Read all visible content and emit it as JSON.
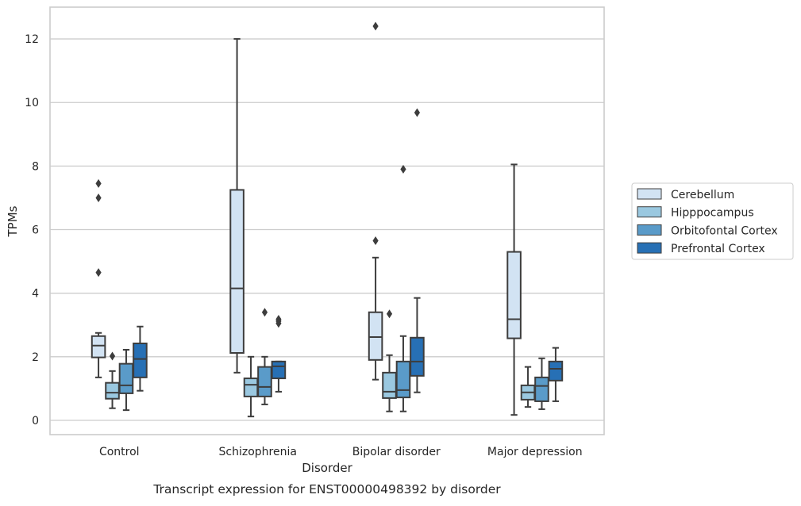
{
  "chart_data": {
    "type": "box",
    "title": "Transcript expression for ENST00000498392 by disorder",
    "xlabel": "Disorder",
    "ylabel": "TPMs",
    "ylim": [
      -0.45,
      13
    ],
    "yticks": [
      0,
      2,
      4,
      6,
      8,
      10,
      12
    ],
    "grid": "horizontal",
    "legend_position": "center-right",
    "categories": [
      "Control",
      "Schizophrenia",
      "Bipolar disorder",
      "Major depression"
    ],
    "series": [
      {
        "name": "Cerebellum",
        "color": "#d2e3f3",
        "boxes": [
          {
            "whislo": 1.35,
            "q1": 1.98,
            "med": 2.35,
            "q3": 2.65,
            "whishi": 2.75,
            "fliers": [
              4.65,
              7.0,
              7.45
            ]
          },
          {
            "whislo": 1.5,
            "q1": 2.12,
            "med": 4.15,
            "q3": 7.25,
            "whishi": 12.0,
            "fliers": []
          },
          {
            "whislo": 1.28,
            "q1": 1.9,
            "med": 2.62,
            "q3": 3.4,
            "whishi": 5.12,
            "fliers": [
              5.65,
              12.4
            ]
          },
          {
            "whislo": 0.17,
            "q1": 2.58,
            "med": 3.18,
            "q3": 5.3,
            "whishi": 8.05,
            "fliers": []
          }
        ]
      },
      {
        "name": "Hipppocampus",
        "color": "#9ac8e0",
        "boxes": [
          {
            "whislo": 0.38,
            "q1": 0.68,
            "med": 0.87,
            "q3": 1.18,
            "whishi": 1.55,
            "fliers": [
              2.02
            ]
          },
          {
            "whislo": 0.12,
            "q1": 0.75,
            "med": 1.12,
            "q3": 1.32,
            "whishi": 2.0,
            "fliers": []
          },
          {
            "whislo": 0.28,
            "q1": 0.7,
            "med": 0.9,
            "q3": 1.5,
            "whishi": 2.05,
            "fliers": [
              3.35
            ]
          },
          {
            "whislo": 0.42,
            "q1": 0.65,
            "med": 0.88,
            "q3": 1.1,
            "whishi": 1.68,
            "fliers": []
          }
        ]
      },
      {
        "name": "Orbitofontal Cortex",
        "color": "#5a9bc9",
        "boxes": [
          {
            "whislo": 0.32,
            "q1": 0.85,
            "med": 1.1,
            "q3": 1.78,
            "whishi": 2.22,
            "fliers": []
          },
          {
            "whislo": 0.5,
            "q1": 0.75,
            "med": 1.05,
            "q3": 1.68,
            "whishi": 2.0,
            "fliers": [
              3.4
            ]
          },
          {
            "whislo": 0.28,
            "q1": 0.72,
            "med": 0.95,
            "q3": 1.85,
            "whishi": 2.65,
            "fliers": [
              7.9
            ]
          },
          {
            "whislo": 0.35,
            "q1": 0.6,
            "med": 1.08,
            "q3": 1.35,
            "whishi": 1.95,
            "fliers": []
          }
        ]
      },
      {
        "name": "Prefrontal Cortex",
        "color": "#2770b5",
        "boxes": [
          {
            "whislo": 0.93,
            "q1": 1.35,
            "med": 1.93,
            "q3": 2.42,
            "whishi": 2.95,
            "fliers": []
          },
          {
            "whislo": 0.9,
            "q1": 1.32,
            "med": 1.7,
            "q3": 1.85,
            "whishi": 1.85,
            "fliers": [
              3.05,
              3.12,
              3.18
            ]
          },
          {
            "whislo": 0.88,
            "q1": 1.4,
            "med": 1.85,
            "q3": 2.6,
            "whishi": 3.85,
            "fliers": [
              9.68
            ]
          },
          {
            "whislo": 0.6,
            "q1": 1.25,
            "med": 1.62,
            "q3": 1.85,
            "whishi": 2.28,
            "fliers": []
          }
        ]
      }
    ]
  }
}
